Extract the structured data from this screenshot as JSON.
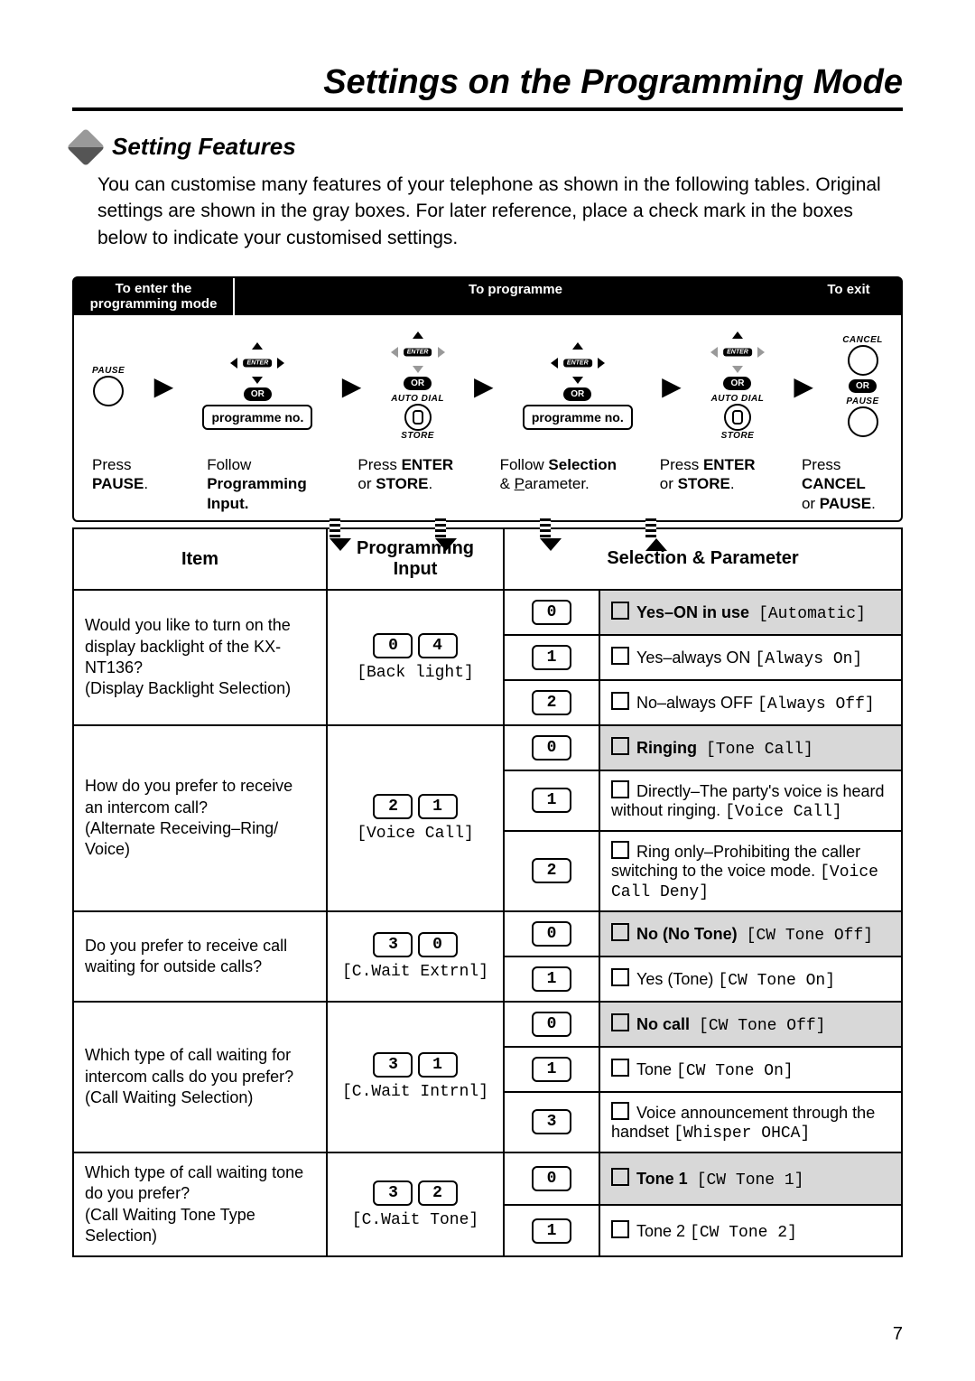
{
  "title": "Settings on the Programming Mode",
  "section_title": "Setting Features",
  "intro": "You can customise many features of your telephone as shown in the following tables. Original settings are shown in the gray boxes. For later reference, place a check mark in the boxes below to indicate your customised settings.",
  "flow_headers": {
    "left_l1": "To enter the",
    "left_l2": "programming mode",
    "mid": "To programme",
    "right": "To exit"
  },
  "flow_labels": {
    "pause": "PAUSE",
    "or": "OR",
    "auto_dial": "AUTO DIAL",
    "store": "STORE",
    "enter": "ENTER",
    "cancel": "CANCEL",
    "progno": "programme no."
  },
  "flow_texts": {
    "s1_l1": "Press",
    "s1_l2": "PAUSE",
    "s1_l2b": ".",
    "s2_l1": "Follow",
    "s2_l2": "Programming",
    "s2_l3": "Input.",
    "s3_l1": "Press ",
    "s3_b": "ENTER",
    "s3_l2": "or ",
    "s3_b2": "STORE",
    "s3_l2b": ".",
    "s4_l1": "Follow ",
    "s4_b": "Selection",
    "s4_l2": "& ",
    "s4_u": "P",
    "s4_l2b": "arameter.",
    "s5_l1": "Press ",
    "s5_b": "ENTER",
    "s5_l2": "or ",
    "s5_b2": "STORE",
    "s5_l2b": ".",
    "s6_l1": "Press",
    "s6_b": "CANCEL",
    "s6_l2": "or ",
    "s6_b2": "PAUSE",
    "s6_l2b": "."
  },
  "table": {
    "headers": {
      "item": "Item",
      "prog": "Programming Input",
      "sel": "Selection & Parameter"
    },
    "rows": [
      {
        "item_lines": [
          "Would you like to turn on the display backlight of the KX-NT136?",
          "(Display Backlight Selection)"
        ],
        "prog_keys": [
          "0",
          "4"
        ],
        "prog_label": "[Back light]",
        "params": [
          {
            "key": "0",
            "bold": "Yes–ON in use",
            "mono": "[Automatic]",
            "gray": true
          },
          {
            "key": "1",
            "text": "Yes–always ON",
            "mono": "[Always On]"
          },
          {
            "key": "2",
            "text": "No–always OFF",
            "mono": "[Always Off]"
          }
        ]
      },
      {
        "item_lines": [
          "How do you prefer to receive an intercom call?",
          "(Alternate Receiving–Ring/ Voice)"
        ],
        "prog_keys": [
          "2",
          "1"
        ],
        "prog_label": "[Voice Call]",
        "params": [
          {
            "key": "0",
            "bold": "Ringing",
            "mono": "[Tone Call]",
            "gray": true
          },
          {
            "key": "1",
            "text": "Directly–The party's voice is heard without ringing.",
            "mono": "[Voice Call]"
          },
          {
            "key": "2",
            "text": "Ring only–Prohibiting the caller switching to the voice mode.",
            "mono": "[Voice Call Deny]"
          }
        ]
      },
      {
        "item_lines": [
          "Do you prefer to receive call waiting for outside calls?"
        ],
        "prog_keys": [
          "3",
          "0"
        ],
        "prog_label": "[C.Wait Extrnl]",
        "params": [
          {
            "key": "0",
            "bold": "No (No Tone)",
            "mono": "[CW Tone Off]",
            "gray": true
          },
          {
            "key": "1",
            "text": "Yes (Tone)",
            "mono": "[CW Tone On]"
          }
        ]
      },
      {
        "item_lines": [
          "Which type of call waiting for intercom calls do you prefer?",
          "(Call Waiting Selection)"
        ],
        "prog_keys": [
          "3",
          "1"
        ],
        "prog_label": "[C.Wait Intrnl]",
        "params": [
          {
            "key": "0",
            "bold": "No call",
            "mono": "[CW Tone Off]",
            "gray": true
          },
          {
            "key": "1",
            "text": "Tone",
            "mono": "[CW Tone On]"
          },
          {
            "key": "3",
            "text": "Voice announcement through the handset",
            "mono": "[Whisper OHCA]"
          }
        ]
      },
      {
        "item_lines": [
          "Which type of call waiting tone do you prefer?",
          "(Call Waiting Tone Type Selection)"
        ],
        "prog_keys": [
          "3",
          "2"
        ],
        "prog_label": "[C.Wait Tone]",
        "params": [
          {
            "key": "0",
            "bold": "Tone 1",
            "mono": "[CW Tone 1]",
            "gray": true
          },
          {
            "key": "1",
            "text": "Tone 2",
            "mono": "[CW Tone 2]"
          }
        ]
      }
    ]
  },
  "page_number": "7"
}
